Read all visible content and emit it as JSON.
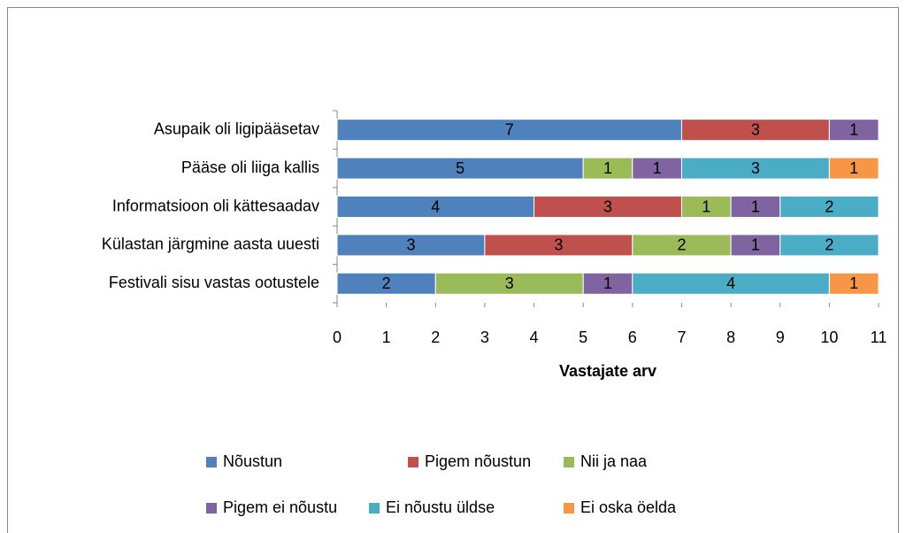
{
  "chart_data": {
    "type": "stacked-barh",
    "categories": [
      "Asupaik oli ligipääsetav",
      "Pääse oli liiga kallis",
      "Informatsioon oli kättesaadav",
      "Külastan järgmine aasta uuesti",
      "Festivali sisu vastas ootustele"
    ],
    "series": [
      {
        "name": "Nõustun",
        "color": "#4f81bd",
        "values": [
          7,
          5,
          4,
          3,
          2
        ]
      },
      {
        "name": "Pigem nõustun",
        "color": "#c0504d",
        "values": [
          3,
          null,
          3,
          3,
          null
        ]
      },
      {
        "name": "Nii ja naa",
        "color": "#9bbb59",
        "values": [
          null,
          1,
          1,
          2,
          3
        ]
      },
      {
        "name": "Pigem ei nõustu",
        "color": "#8064a2",
        "values": [
          1,
          1,
          1,
          1,
          1
        ]
      },
      {
        "name": "Ei nõustu üldse",
        "color": "#4bacc6",
        "values": [
          null,
          3,
          2,
          2,
          4
        ]
      },
      {
        "name": "Ei oska öelda",
        "color": "#f79646",
        "values": [
          null,
          1,
          null,
          null,
          1
        ]
      }
    ],
    "xlabel": "Vastajate arv",
    "xlim": [
      0,
      11
    ],
    "xticks": [
      0,
      1,
      2,
      3,
      4,
      5,
      6,
      7,
      8,
      9,
      10,
      11
    ],
    "legend": "bottom"
  }
}
